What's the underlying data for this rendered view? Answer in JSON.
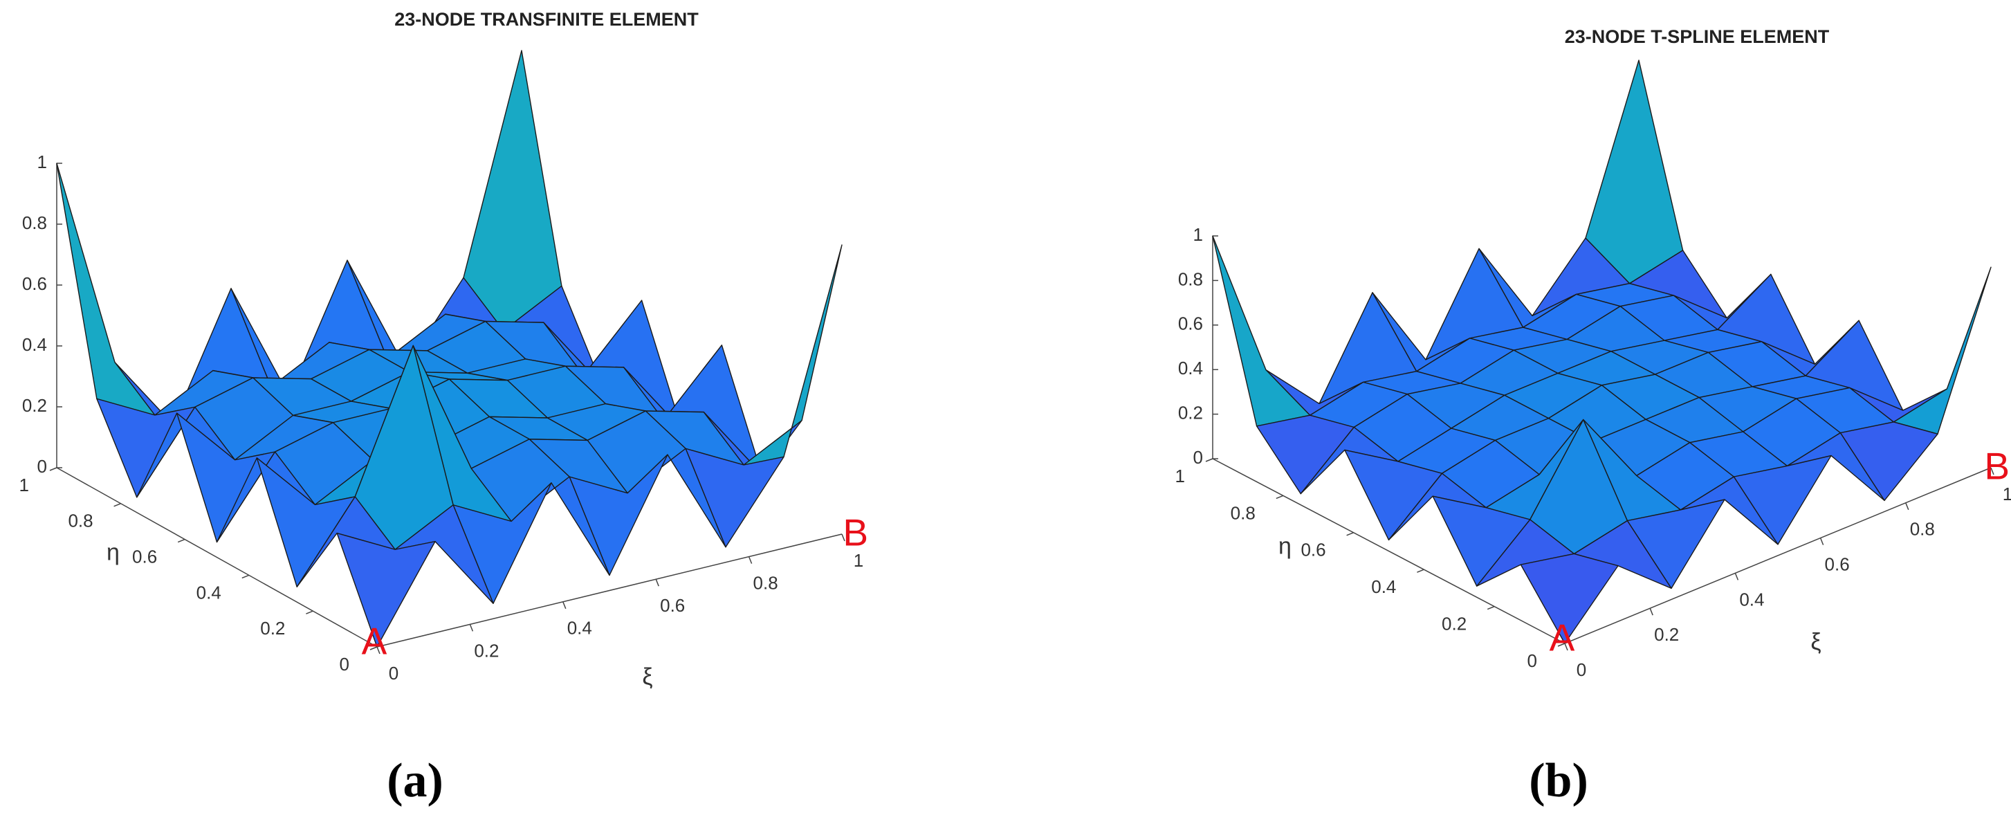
{
  "chart_data": [
    {
      "type": "surface",
      "title": "23-NODE TRANSFINITE ELEMENT",
      "xlabel": "ξ",
      "ylabel": "η",
      "caption": "(a)",
      "annotations": [
        "A",
        "B"
      ],
      "colormap": "parula",
      "x": [
        0,
        0.125,
        0.25,
        0.375,
        0.5,
        0.625,
        0.75,
        0.875,
        1
      ],
      "y": [
        0,
        0.125,
        0.25,
        0.375,
        0.5,
        0.625,
        0.75,
        0.875,
        1
      ],
      "z": [
        [
          0,
          0.3,
          0.05,
          0.4,
          0.05,
          0.4,
          0.05,
          0.3,
          0.95
        ],
        [
          0.3,
          0.2,
          0.3,
          0.2,
          0.3,
          0.2,
          0.3,
          0.2,
          0.3
        ],
        [
          0.05,
          0.3,
          0.75,
          0.3,
          0.35,
          0.3,
          0.35,
          0.3,
          0.05
        ],
        [
          0.4,
          0.2,
          0.3,
          0.3,
          0.35,
          0.3,
          0.3,
          0.2,
          0.4
        ],
        [
          0.05,
          0.3,
          0.35,
          0.35,
          0.4,
          0.35,
          0.35,
          0.3,
          0.05
        ],
        [
          0.4,
          0.2,
          0.3,
          0.3,
          0.35,
          0.3,
          0.3,
          0.2,
          0.4
        ],
        [
          0.05,
          0.3,
          0.35,
          0.3,
          0.35,
          0.3,
          0.35,
          0.3,
          0.05
        ],
        [
          0.3,
          0.2,
          0.3,
          0.2,
          0.3,
          0.2,
          0.3,
          0.2,
          0.3
        ],
        [
          1,
          0.3,
          0.05,
          0.45,
          0.05,
          0.45,
          0.05,
          0.3,
          1
        ]
      ],
      "xlim": [
        0,
        1
      ],
      "ylim": [
        0,
        1
      ],
      "zlim": [
        0,
        1
      ],
      "xticks": [
        0,
        0.2,
        0.4,
        0.6,
        0.8,
        1
      ],
      "yticks": [
        0,
        0.2,
        0.4,
        0.6,
        0.8,
        1
      ],
      "zticks": [
        0,
        0.2,
        0.4,
        0.6,
        0.8,
        1
      ]
    },
    {
      "type": "surface",
      "title": "23-NODE T-SPLINE ELEMENT",
      "xlabel": "ξ",
      "ylabel": "η",
      "caption": "(b)",
      "annotations": [
        "A",
        "B"
      ],
      "colormap": "parula",
      "x": [
        0,
        0.125,
        0.25,
        0.375,
        0.5,
        0.625,
        0.75,
        0.875,
        1
      ],
      "y": [
        0,
        0.125,
        0.25,
        0.375,
        0.5,
        0.625,
        0.75,
        0.875,
        1
      ],
      "z": [
        [
          0,
          0.25,
          0.05,
          0.35,
          0.05,
          0.35,
          0.05,
          0.25,
          0.9
        ],
        [
          0.25,
          0.2,
          0.25,
          0.2,
          0.25,
          0.2,
          0.25,
          0.2,
          0.25
        ],
        [
          0.05,
          0.25,
          0.6,
          0.25,
          0.3,
          0.25,
          0.3,
          0.25,
          0.05
        ],
        [
          0.35,
          0.2,
          0.25,
          0.3,
          0.3,
          0.3,
          0.25,
          0.2,
          0.35
        ],
        [
          0.05,
          0.25,
          0.3,
          0.3,
          0.35,
          0.3,
          0.3,
          0.25,
          0.05
        ],
        [
          0.35,
          0.2,
          0.25,
          0.3,
          0.3,
          0.3,
          0.25,
          0.2,
          0.35
        ],
        [
          0.05,
          0.25,
          0.3,
          0.25,
          0.3,
          0.25,
          0.3,
          0.25,
          0.05
        ],
        [
          0.25,
          0.2,
          0.25,
          0.2,
          0.25,
          0.2,
          0.25,
          0.2,
          0.25
        ],
        [
          1,
          0.3,
          0.05,
          0.45,
          0.05,
          0.45,
          0.05,
          0.3,
          1
        ]
      ],
      "xlim": [
        0,
        1
      ],
      "ylim": [
        0,
        1
      ],
      "zlim": [
        0,
        1
      ],
      "xticks": [
        0,
        0.2,
        0.4,
        0.6,
        0.8,
        1
      ],
      "yticks": [
        0,
        0.2,
        0.4,
        0.6,
        0.8,
        1
      ],
      "zticks": [
        0,
        0.2,
        0.4,
        0.6,
        0.8,
        1
      ]
    }
  ]
}
